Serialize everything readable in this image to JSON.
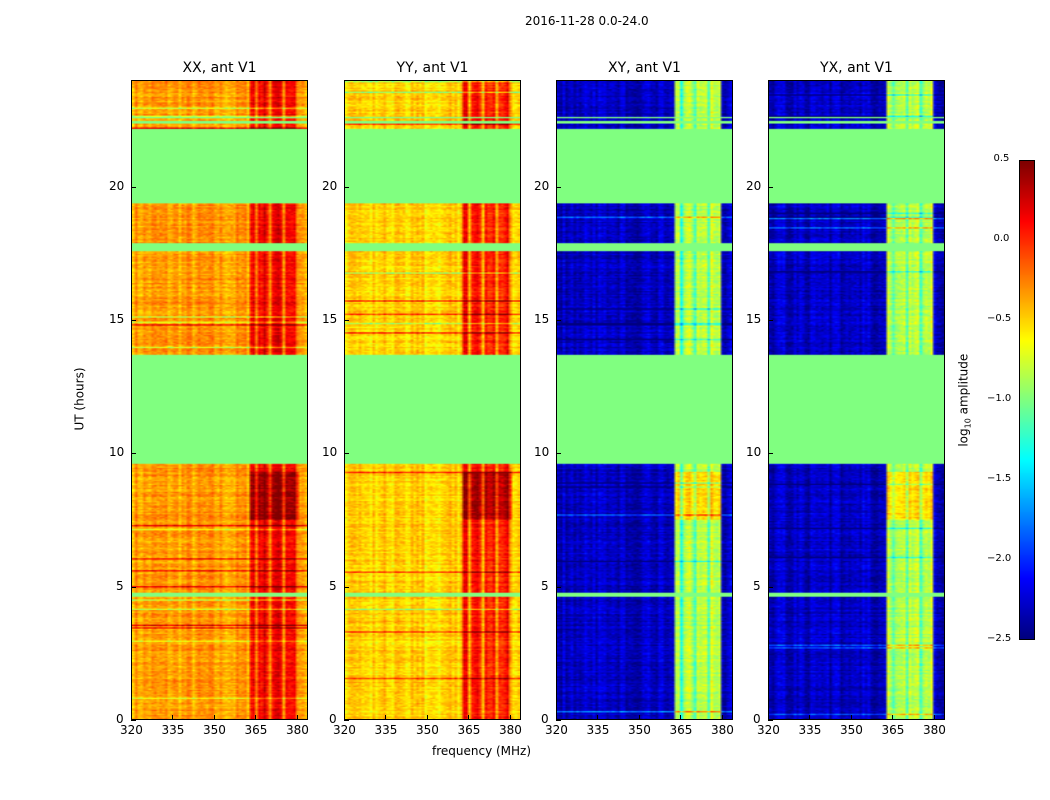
{
  "suptitle": "2016-11-28 0.0-24.0",
  "chart_data": {
    "type": "heatmap",
    "xlabel": "frequency (MHz)",
    "ylabel": "UT (hours)",
    "xlim": [
      320,
      384
    ],
    "ylim": [
      0,
      24
    ],
    "xticks": [
      320,
      335,
      350,
      365,
      380
    ],
    "yticks": [
      0,
      5,
      10,
      15,
      20
    ],
    "colorbar": {
      "label": "log10 amplitude",
      "label_main": "log",
      "label_sub": "10",
      "label_tail": " amplitude",
      "range": [
        -2.5,
        0.5
      ],
      "ticks": [
        "0.5",
        "0.0",
        "−0.5",
        "−1.0",
        "−1.5",
        "−2.0",
        "−2.5"
      ],
      "tick_values": [
        0.5,
        0,
        -0.5,
        -1,
        -1.5,
        -2,
        -2.5
      ],
      "colormap": "jet"
    },
    "flagged_hours": [
      [
        19.4,
        22.2
      ],
      [
        9.6,
        13.7
      ],
      [
        17.6,
        17.9
      ],
      [
        4.6,
        4.75
      ],
      [
        22.4,
        22.5
      ],
      [
        22.6,
        22.65
      ]
    ],
    "flagged_value": -1.0,
    "panels": [
      {
        "title": "XX, ant V1",
        "base_level": -0.35,
        "band_level": 0.15,
        "band_mhz": [
          363,
          381
        ]
      },
      {
        "title": "YY, ant V1",
        "base_level": -0.5,
        "band_level": 0.05,
        "band_mhz": [
          363,
          381
        ]
      },
      {
        "title": "XY, ant V1",
        "base_level": -2.3,
        "band_level": -0.8,
        "band_mhz": [
          363,
          380
        ]
      },
      {
        "title": "YX, ant V1",
        "base_level": -2.3,
        "band_level": -0.8,
        "band_mhz": [
          363,
          380
        ]
      }
    ]
  }
}
